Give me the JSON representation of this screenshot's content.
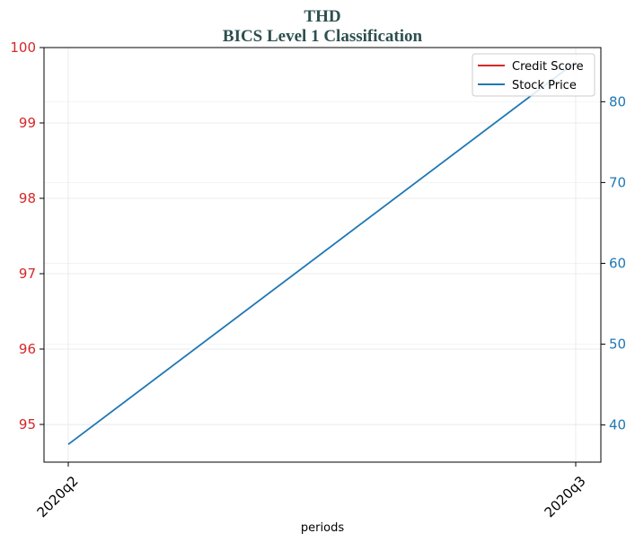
{
  "chart_data": {
    "type": "line",
    "title": "THD",
    "subtitle": "BICS Level 1 Classification",
    "xlabel": "periods",
    "categories": [
      "2020q2",
      "2020q3"
    ],
    "y_left": {
      "ylim": [
        94.5,
        100
      ],
      "ticks": [
        95,
        96,
        97,
        98,
        99,
        100
      ],
      "color": "#d62728"
    },
    "y_right": {
      "ylim": [
        35.4,
        86.7
      ],
      "ticks": [
        40,
        50,
        60,
        70,
        80
      ],
      "color": "#1f77b4"
    },
    "series": [
      {
        "name": "Credit Score",
        "axis": "left",
        "color": "#d62728",
        "values": [
          null,
          null
        ]
      },
      {
        "name": "Stock Price",
        "axis": "right",
        "color": "#1f77b4",
        "values": [
          37.6,
          84.9
        ]
      }
    ],
    "legend": {
      "placement": "top-right"
    },
    "grid": true
  }
}
